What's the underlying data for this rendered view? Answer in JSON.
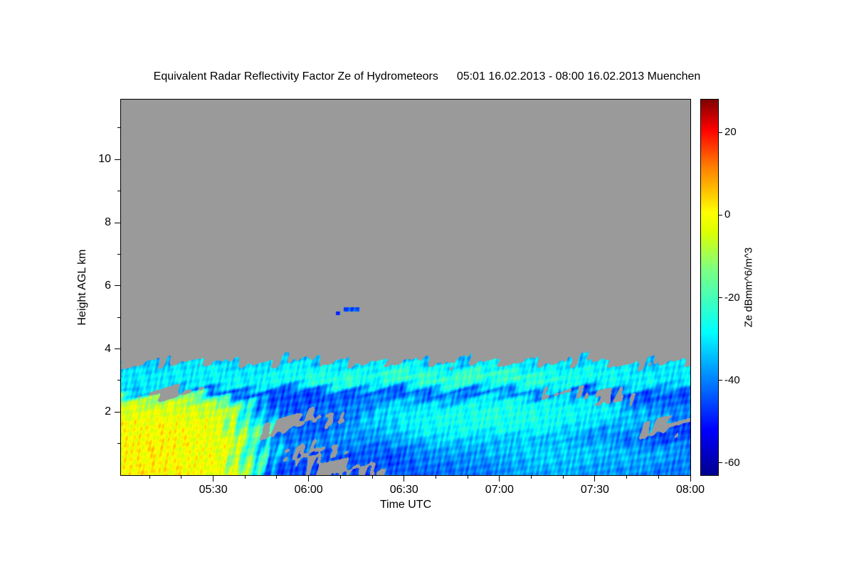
{
  "title": "Equivalent Radar Reflectivity Factor Ze of Hydrometeors",
  "subtitle": "05:01 16.02.2013 - 08:00 16.02.2013 Muenchen",
  "chart_data": {
    "type": "heatmap",
    "title": "Equivalent Radar Reflectivity Factor Ze of Hydrometeors",
    "time_start": "05:01 16.02.2013",
    "time_end": "08:00 16.02.2013",
    "station": "Muenchen",
    "xlabel": "Time UTC",
    "ylabel": "Height AGL km",
    "colorbar_label": "Ze dBmm^6/m^3",
    "xlim_minutes": [
      301,
      480
    ],
    "ylim_km": [
      0,
      11.9
    ],
    "xticks": [
      {
        "m": 330,
        "label": "05:30"
      },
      {
        "m": 360,
        "label": "06:00"
      },
      {
        "m": 390,
        "label": "06:30"
      },
      {
        "m": 420,
        "label": "07:00"
      },
      {
        "m": 450,
        "label": "07:30"
      },
      {
        "m": 480,
        "label": "08:00"
      }
    ],
    "x_minor_minutes": [
      310,
      320,
      340,
      350,
      370,
      380,
      400,
      410,
      430,
      440,
      460,
      470
    ],
    "yticks": [
      {
        "v": 2,
        "label": "2"
      },
      {
        "v": 4,
        "label": "4"
      },
      {
        "v": 6,
        "label": "6"
      },
      {
        "v": 8,
        "label": "8"
      },
      {
        "v": 10,
        "label": "10"
      }
    ],
    "y_minor_km": [
      1,
      3,
      5,
      7,
      9,
      11
    ],
    "no_echo_color": "#9a9a9a",
    "colorbar": {
      "vmin": -63,
      "vmax": 28,
      "ticks": [
        {
          "v": 20,
          "label": "20"
        },
        {
          "v": 0,
          "label": "0"
        },
        {
          "v": -20,
          "label": "-20"
        },
        {
          "v": -40,
          "label": "-40"
        },
        {
          "v": -60,
          "label": "-60"
        }
      ],
      "stops": [
        [
          0.0,
          [
            0,
            0,
            143
          ]
        ],
        [
          0.12,
          [
            0,
            0,
            255
          ]
        ],
        [
          0.38,
          [
            0,
            255,
            255
          ]
        ],
        [
          0.55,
          [
            128,
            255,
            128
          ]
        ],
        [
          0.65,
          [
            224,
            255,
            0
          ]
        ],
        [
          0.7,
          [
            255,
            255,
            0
          ]
        ],
        [
          0.82,
          [
            255,
            128,
            0
          ]
        ],
        [
          0.92,
          [
            255,
            0,
            0
          ]
        ],
        [
          1.0,
          [
            128,
            0,
            0
          ]
        ]
      ]
    },
    "grid": {
      "note": "Approximate Ze (dB) field read from the image. Rows bottom-to-top, 0.25 km per row starting at 0 km; 24 time columns spanning 05:01-08:00. null = no echo (grey).",
      "t_start_min": 301,
      "t_end_min": 480,
      "h_start_km": 0,
      "h_step_km": 0.25,
      "values": [
        [
          0,
          2,
          -1,
          0,
          -2,
          -18,
          -44,
          -46,
          null,
          -46,
          null,
          -44,
          -43,
          -42,
          -42,
          -40,
          -38,
          -37,
          -36,
          -37,
          -38,
          -39,
          -40,
          -42
        ],
        [
          1,
          2,
          0,
          -1,
          -3,
          -20,
          -42,
          -44,
          null,
          null,
          -44,
          -46,
          -42,
          -41,
          -40,
          -38,
          -36,
          -35,
          -34,
          -35,
          -36,
          -37,
          -38,
          -40
        ],
        [
          0,
          1,
          -1,
          -2,
          -3,
          -18,
          -40,
          null,
          -44,
          -46,
          -42,
          -44,
          -40,
          -39,
          -38,
          -36,
          -34,
          -33,
          -32,
          -33,
          -34,
          -35,
          -36,
          -38
        ],
        [
          1,
          2,
          0,
          -1,
          -2,
          -16,
          -38,
          -40,
          null,
          -42,
          -44,
          -40,
          -38,
          -37,
          -36,
          -35,
          -33,
          -32,
          -33,
          -34,
          -35,
          -36,
          -38,
          -40
        ],
        [
          0,
          1,
          -1,
          -2,
          -3,
          -18,
          -40,
          -42,
          -40,
          -38,
          -40,
          -36,
          -34,
          -33,
          -32,
          -33,
          -34,
          -35,
          -36,
          -38,
          -40,
          -42,
          -44,
          -45
        ],
        [
          -2,
          0,
          1,
          -2,
          -4,
          -20,
          null,
          -44,
          -42,
          -38,
          -36,
          -32,
          -30,
          -29,
          -28,
          -27,
          -28,
          -30,
          -32,
          -34,
          -36,
          -40,
          null,
          -46
        ],
        [
          0,
          1,
          -1,
          -3,
          -4,
          -24,
          null,
          null,
          -44,
          -40,
          -34,
          -30,
          -28,
          -27,
          -26,
          -25,
          -26,
          -27,
          -28,
          -30,
          -32,
          -36,
          null,
          null
        ],
        [
          -3,
          -2,
          -4,
          -5,
          -6,
          -26,
          -42,
          -44,
          null,
          -42,
          -36,
          -30,
          -28,
          -26,
          -25,
          -24,
          -25,
          -26,
          -27,
          -28,
          -30,
          -33,
          -36,
          -40
        ],
        [
          -4,
          -3,
          -5,
          -6,
          -8,
          -28,
          -44,
          -45,
          -42,
          -40,
          -38,
          -33,
          -30,
          -28,
          -27,
          -26,
          -25,
          -26,
          -27,
          -28,
          -30,
          -34,
          -38,
          -42
        ],
        [
          -8,
          -10,
          -12,
          -14,
          -16,
          -34,
          -44,
          -46,
          -44,
          -42,
          -40,
          -38,
          -36,
          -34,
          -32,
          -30,
          -29,
          -28,
          -30,
          -32,
          null,
          -44,
          -42,
          -45
        ],
        [
          -34,
          null,
          null,
          -42,
          -44,
          -46,
          -45,
          -44,
          -46,
          -45,
          -44,
          -46,
          -45,
          -44,
          -43,
          -42,
          -40,
          -42,
          null,
          -46,
          null,
          -45,
          -44,
          -43
        ],
        [
          -31,
          -30,
          -29,
          -30,
          -28,
          -29,
          -28,
          -27,
          -26,
          -27,
          -28,
          -26,
          -25,
          -27,
          -24,
          -26,
          -25,
          -27,
          -28,
          -29,
          -28,
          -30,
          -31,
          -32
        ],
        [
          -30,
          -29,
          -30,
          -28,
          -29,
          -28,
          -27,
          -26,
          -24,
          -22,
          -25,
          -21,
          -20,
          -22,
          -19,
          -21,
          -20,
          -23,
          -22,
          -26,
          -27,
          -28,
          -29,
          -30
        ],
        [
          -32,
          -30,
          -31,
          -29,
          -30,
          -31,
          -30,
          -29,
          -28,
          -29,
          -30,
          -28,
          -27,
          -28,
          -27,
          -28,
          -29,
          -28,
          -29,
          -30,
          -29,
          -30,
          -31,
          -30
        ],
        [
          null,
          -36,
          null,
          null,
          -34,
          null,
          null,
          -35,
          null,
          -33,
          null,
          null,
          -34,
          null,
          -35,
          null,
          null,
          -33,
          null,
          -34,
          null,
          null,
          -35,
          null
        ]
      ]
    },
    "specks": [
      {
        "t0": 371,
        "t1": 376,
        "h0": 5.18,
        "h1": 5.32,
        "value": -44
      },
      {
        "t0": 368.5,
        "t1": 370,
        "h0": 5.08,
        "h1": 5.18,
        "value": -50
      }
    ]
  }
}
